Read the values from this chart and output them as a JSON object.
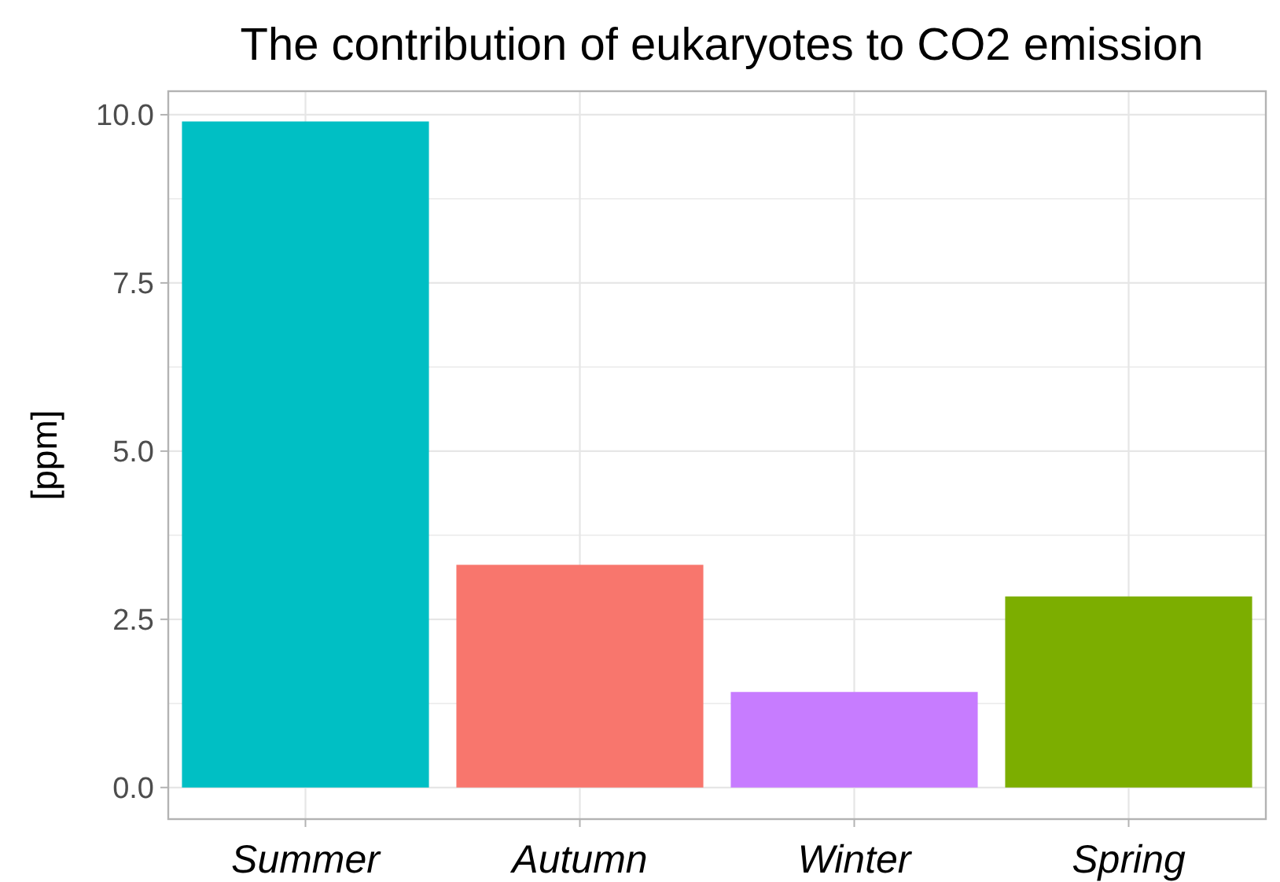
{
  "chart_data": {
    "type": "bar",
    "title": "The contribution of eukaryotes to CO2 emission",
    "ylabel": "[ppm]",
    "categories": [
      "Summer",
      "Autumn",
      "Winter",
      "Spring"
    ],
    "values": [
      9.9,
      3.31,
      1.42,
      2.84
    ],
    "colors": [
      "#00bfc4",
      "#f8766d",
      "#c77cff",
      "#7cae00"
    ],
    "ylim": [
      -0.47,
      10.35
    ],
    "yticks": [
      {
        "value": 0,
        "label": "0.0"
      },
      {
        "value": 1.25,
        "label": null
      },
      {
        "value": 2.5,
        "label": "2.5"
      },
      {
        "value": 3.75,
        "label": null
      },
      {
        "value": 5,
        "label": "5.0"
      },
      {
        "value": 6.25,
        "label": null
      },
      {
        "value": 7.5,
        "label": "7.5"
      },
      {
        "value": 8.75,
        "label": null
      },
      {
        "value": 10,
        "label": "10.0"
      }
    ],
    "grid": true
  }
}
